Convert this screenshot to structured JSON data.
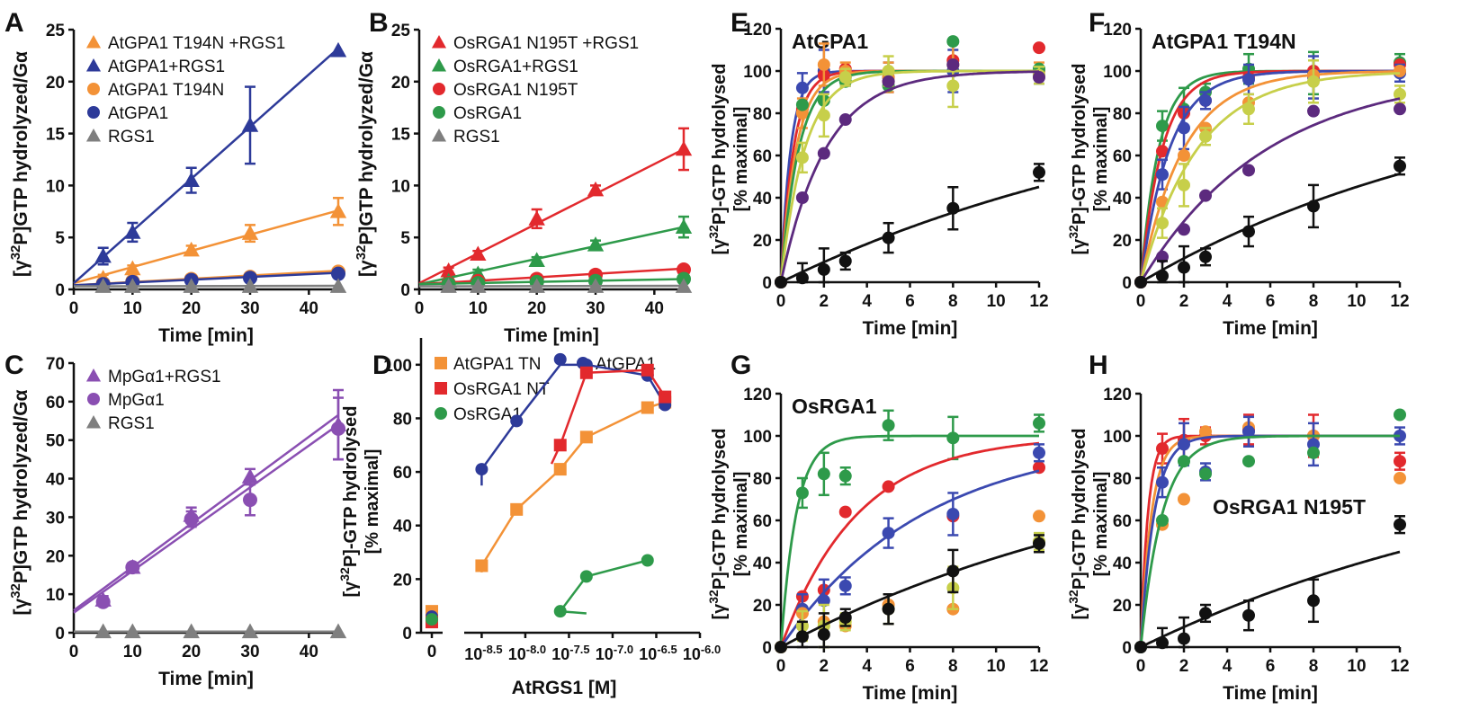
{
  "colors": {
    "black": "#111111",
    "gray": "#7f7f7f",
    "navy": "#2d3a99",
    "blue": "#3b49b0",
    "orange": "#f39237",
    "red": "#e2292d",
    "green": "#2e9a4a",
    "yellow": "#c7cf4a",
    "purple": "#5c2a7e",
    "violet": "#8a4fb2"
  },
  "chart_data": [
    {
      "panel": "A",
      "type": "line",
      "xlabel": "Time [min]",
      "ylabel": "[γ32P]GTP hydrolyzed/Gα",
      "xlim": [
        0,
        45
      ],
      "ylim": [
        0,
        25
      ],
      "xticks": [
        0,
        10,
        20,
        30,
        40
      ],
      "yticks": [
        0,
        5,
        10,
        15,
        20,
        25
      ],
      "legend_position": "top-left",
      "series": [
        {
          "name": "AtGPA1 T194N +RGS1",
          "color": "orange",
          "marker": "triangle",
          "x": [
            5,
            10,
            20,
            30,
            45
          ],
          "y": [
            1.1,
            2.0,
            3.8,
            5.4,
            7.5
          ],
          "err": [
            0.3,
            0.3,
            0.4,
            0.8,
            1.3
          ],
          "fit_line": [
            0.6,
            7.6
          ]
        },
        {
          "name": "AtGPA1+RGS1",
          "color": "navy",
          "marker": "triangle",
          "x": [
            5,
            10,
            20,
            30,
            45
          ],
          "y": [
            3.2,
            5.5,
            10.5,
            15.8,
            23.0
          ],
          "err": [
            0.8,
            0.9,
            1.2,
            3.7,
            0
          ],
          "fit_line": [
            0.6,
            23.2
          ]
        },
        {
          "name": "AtGPA1 T194N",
          "color": "orange",
          "marker": "circle",
          "x": [
            5,
            10,
            20,
            30,
            45
          ],
          "y": [
            0.6,
            0.8,
            1.0,
            1.2,
            1.7
          ],
          "err": [
            0,
            0,
            0,
            0,
            0.3
          ],
          "fit_line": [
            0.4,
            1.8
          ]
        },
        {
          "name": "AtGPA1",
          "color": "navy",
          "marker": "circle",
          "x": [
            5,
            10,
            20,
            30,
            45
          ],
          "y": [
            0.5,
            0.7,
            0.9,
            1.1,
            1.5
          ],
          "err": [
            0,
            0,
            0,
            0,
            0.2
          ],
          "fit_line": [
            0.4,
            1.6
          ]
        },
        {
          "name": "RGS1",
          "color": "gray",
          "marker": "triangle",
          "x": [
            5,
            10,
            20,
            30,
            45
          ],
          "y": [
            0.3,
            0.3,
            0.3,
            0.3,
            0.3
          ],
          "err": [
            0,
            0,
            0,
            0,
            0
          ],
          "fit_line": [
            0.3,
            0.35
          ]
        }
      ]
    },
    {
      "panel": "B",
      "type": "line",
      "xlabel": "Time [min]",
      "ylabel": "[γ32P]GTP hydrolyzed/Gα",
      "xlim": [
        0,
        45
      ],
      "ylim": [
        0,
        25
      ],
      "xticks": [
        0,
        10,
        20,
        30,
        40
      ],
      "yticks": [
        0,
        5,
        10,
        15,
        20,
        25
      ],
      "legend_position": "top-left",
      "series": [
        {
          "name": "OsRGA1 N195T +RGS1",
          "color": "red",
          "marker": "triangle",
          "x": [
            5,
            10,
            20,
            30,
            45
          ],
          "y": [
            1.8,
            3.4,
            6.8,
            9.6,
            13.5
          ],
          "err": [
            0.3,
            0.3,
            0.9,
            0.4,
            2.0
          ],
          "fit_line": [
            0.6,
            13.5
          ]
        },
        {
          "name": "OsRGA1+RGS1",
          "color": "green",
          "marker": "triangle",
          "x": [
            5,
            10,
            20,
            30,
            45
          ],
          "y": [
            0.8,
            1.5,
            2.8,
            4.3,
            6.0
          ],
          "err": [
            0.3,
            0.4,
            0.3,
            0.4,
            1.0
          ],
          "fit_line": [
            0.5,
            6.0
          ]
        },
        {
          "name": "OsRGA1 N195T",
          "color": "red",
          "marker": "circle",
          "x": [
            5,
            10,
            20,
            30,
            45
          ],
          "y": [
            0.6,
            0.8,
            1.0,
            1.4,
            1.9
          ],
          "err": [
            0,
            0,
            0,
            0,
            0.2
          ],
          "fit_line": [
            0.5,
            2.0
          ]
        },
        {
          "name": "OsRGA1",
          "color": "green",
          "marker": "circle",
          "x": [
            5,
            10,
            20,
            30,
            45
          ],
          "y": [
            0.5,
            0.6,
            0.7,
            0.8,
            1.0
          ],
          "err": [
            0,
            0,
            0,
            0,
            0
          ],
          "fit_line": [
            0.5,
            1.0
          ]
        },
        {
          "name": "RGS1",
          "color": "gray",
          "marker": "triangle",
          "x": [
            5,
            10,
            20,
            30,
            45
          ],
          "y": [
            0.3,
            0.3,
            0.3,
            0.3,
            0.3
          ],
          "err": [
            0,
            0,
            0,
            0,
            0
          ],
          "fit_line": [
            0.3,
            0.35
          ]
        }
      ]
    },
    {
      "panel": "C",
      "type": "line",
      "xlabel": "Time [min]",
      "ylabel": "[γ32P]GTP hydrolyzed/Gα",
      "xlim": [
        0,
        45
      ],
      "ylim": [
        0,
        70
      ],
      "xticks": [
        0,
        10,
        20,
        30,
        40
      ],
      "yticks": [
        0,
        10,
        20,
        30,
        40,
        50,
        60,
        70
      ],
      "legend_position": "top-left",
      "series": [
        {
          "name": "MpGα1+RGS1",
          "color": "violet",
          "marker": "triangle",
          "x": [
            5,
            10,
            20,
            30,
            45
          ],
          "y": [
            8.5,
            17,
            30.5,
            40.5,
            54
          ],
          "err": [
            1,
            1,
            2,
            2,
            9
          ],
          "fit_line": [
            5.8,
            56.5
          ]
        },
        {
          "name": "MpGα1",
          "color": "violet",
          "marker": "circle",
          "x": [
            5,
            10,
            20,
            30,
            45
          ],
          "y": [
            8,
            17,
            29.5,
            34.5,
            53
          ],
          "err": [
            1,
            1,
            2,
            4,
            8
          ],
          "fit_line": [
            5.2,
            54
          ]
        },
        {
          "name": "RGS1",
          "color": "gray",
          "marker": "triangle",
          "x": [
            5,
            10,
            20,
            30,
            45
          ],
          "y": [
            0.3,
            0.3,
            0.3,
            0.3,
            0.3
          ],
          "err": [
            0,
            0,
            0,
            0,
            0
          ],
          "fit_line": [
            0.3,
            0.3
          ]
        }
      ]
    },
    {
      "panel": "D",
      "type": "scatter",
      "xlabel": "AtRGS1 [M]",
      "ylabel": "[γ32P]-GTP hydrolysed [% maximal]",
      "xlim": [
        -8.7,
        -6.0
      ],
      "ylim": [
        0,
        110
      ],
      "x_scale": "log",
      "xticks": [
        -8.5,
        -8.0,
        -7.5,
        -7.0,
        -6.5,
        -6.0
      ],
      "xtick_labels": [
        "10-8.5",
        "10-8.0",
        "10-7.5",
        "10-7.0",
        "10-6.5",
        "10-6.0"
      ],
      "yticks": [
        0,
        20,
        40,
        60,
        80,
        100
      ],
      "legend_position": "top",
      "series": [
        {
          "name": "AtGPA1 TN",
          "color": "orange",
          "marker": "square",
          "zero_value": 8,
          "x": [
            -8.5,
            -8.1,
            -7.6,
            -7.3,
            -6.6,
            -6.4
          ],
          "y": [
            25,
            46,
            61,
            73,
            84,
            86
          ],
          "fit_x0": -8.5
        },
        {
          "name": "AtGPA1",
          "color": "navy",
          "marker": "circle",
          "zero_value": 6,
          "x": [
            -8.5,
            -8.1,
            -7.6,
            -7.3,
            -6.6,
            -6.4
          ],
          "y": [
            61,
            79,
            102,
            100,
            96,
            85
          ],
          "fit_x0": -8.5
        },
        {
          "name": "OsRGA1 NT",
          "color": "red",
          "marker": "square",
          "zero_value": 4,
          "x": [
            -7.6,
            -7.3,
            -6.6,
            -6.4
          ],
          "y": [
            70,
            97,
            98,
            88
          ],
          "fit_x0": -7.7
        },
        {
          "name": "OsRGA1",
          "color": "green",
          "marker": "circle",
          "zero_value": 5,
          "x": [
            -7.6,
            -7.3,
            -6.6
          ],
          "y": [
            8,
            21,
            27
          ],
          "fit_x0": -7.3
        }
      ]
    },
    {
      "panel": "E",
      "type": "line",
      "title": "AtGPA1",
      "xlabel": "Time [min]",
      "ylabel": "[γ32P]-GTP hydrolysed [% maximal]",
      "xlim": [
        0,
        12
      ],
      "ylim": [
        0,
        120
      ],
      "xticks": [
        0,
        2,
        4,
        6,
        8,
        10,
        12
      ],
      "yticks": [
        0,
        20,
        40,
        60,
        80,
        100,
        120
      ],
      "x": [
        0,
        1,
        2,
        3,
        5,
        8,
        12
      ],
      "series": [
        {
          "color": "blue",
          "k": 2.2,
          "y": [
            0,
            92,
            100,
            97,
            97,
            100,
            98
          ]
        },
        {
          "color": "red",
          "k": 1.7,
          "y": [
            0,
            82,
            98,
            101,
            95,
            105,
            111
          ]
        },
        {
          "color": "orange",
          "k": 1.4,
          "y": [
            0,
            80,
            103,
            100,
            97,
            103,
            100
          ]
        },
        {
          "color": "green",
          "k": 1.2,
          "y": [
            0,
            84,
            86,
            95,
            93,
            114,
            101
          ]
        },
        {
          "color": "yellow",
          "k": 0.9,
          "y": [
            0,
            59,
            79,
            97,
            100,
            93,
            98
          ]
        },
        {
          "color": "purple",
          "k": 0.48,
          "y": [
            0,
            40,
            61,
            77,
            95,
            103,
            97
          ]
        },
        {
          "color": "black",
          "k": 0.05,
          "y": [
            0,
            2,
            6,
            10,
            21,
            35,
            52
          ]
        }
      ]
    },
    {
      "panel": "F",
      "type": "line",
      "title": "AtGPA1 T194N",
      "xlabel": "Time [min]",
      "ylabel": "[γ32P]-GTP hydrolysed [% maximal]",
      "xlim": [
        0,
        12
      ],
      "ylim": [
        0,
        120
      ],
      "xticks": [
        0,
        2,
        4,
        6,
        8,
        10,
        12
      ],
      "yticks": [
        0,
        20,
        40,
        60,
        80,
        100,
        120
      ],
      "x": [
        0,
        1,
        2,
        3,
        5,
        8,
        12
      ],
      "series": [
        {
          "color": "green",
          "k": 1.2,
          "y": [
            0,
            74,
            82,
            90,
            101,
            99,
            104
          ]
        },
        {
          "color": "red",
          "k": 1.0,
          "y": [
            0,
            62,
            80,
            86,
            97,
            100,
            103
          ]
        },
        {
          "color": "blue",
          "k": 0.75,
          "y": [
            0,
            51,
            73,
            86,
            96,
            97,
            99
          ]
        },
        {
          "color": "orange",
          "k": 0.5,
          "y": [
            0,
            38,
            60,
            73,
            85,
            98,
            100
          ]
        },
        {
          "color": "yellow",
          "k": 0.38,
          "y": [
            0,
            28,
            46,
            69,
            82,
            95,
            89
          ]
        },
        {
          "color": "purple",
          "k": 0.17,
          "y": [
            0,
            12,
            25,
            41,
            53,
            81,
            82
          ]
        },
        {
          "color": "black",
          "k": 0.06,
          "y": [
            0,
            3,
            7,
            12,
            24,
            36,
            55
          ]
        }
      ]
    },
    {
      "panel": "G",
      "type": "line",
      "title": "OsRGA1",
      "xlabel": "Time [min]",
      "ylabel": "[γ32P]-GTP hydrolysed [% maximal]",
      "xlim": [
        0,
        12
      ],
      "ylim": [
        0,
        120
      ],
      "xticks": [
        0,
        2,
        4,
        6,
        8,
        10,
        12
      ],
      "yticks": [
        0,
        20,
        40,
        60,
        80,
        100,
        120
      ],
      "x": [
        0,
        1,
        2,
        3,
        5,
        8,
        12
      ],
      "series": [
        {
          "color": "green",
          "k": 1.4,
          "y": [
            0,
            73,
            82,
            81,
            105,
            99,
            106
          ]
        },
        {
          "color": "red",
          "k": 0.28,
          "y": [
            0,
            24,
            27,
            64,
            76,
            62,
            85
          ]
        },
        {
          "color": "blue",
          "k": 0.15,
          "y": [
            0,
            18,
            22,
            29,
            54,
            63,
            92
          ]
        },
        {
          "color": "orange",
          "k": 0.0,
          "y": [
            0,
            16,
            12,
            10,
            20,
            18,
            62
          ]
        },
        {
          "color": "yellow",
          "k": 0.0,
          "y": [
            0,
            10,
            10,
            12,
            18,
            28,
            50
          ]
        },
        {
          "color": "black",
          "k": 0.055,
          "y": [
            0,
            5,
            6,
            14,
            18,
            36,
            49
          ]
        }
      ]
    },
    {
      "panel": "H",
      "type": "line",
      "title": "OsRGA1 N195T",
      "xlabel": "Time [min]",
      "ylabel": "[γ32P]-GTP hydrolysed [% maximal]",
      "xlim": [
        0,
        12
      ],
      "ylim": [
        0,
        120
      ],
      "xticks": [
        0,
        2,
        4,
        6,
        8,
        10,
        12
      ],
      "yticks": [
        0,
        20,
        40,
        60,
        80,
        100,
        120
      ],
      "x": [
        0,
        1,
        2,
        3,
        5,
        8,
        12
      ],
      "series": [
        {
          "color": "red",
          "k": 3.0,
          "y": [
            0,
            94,
            98,
            100,
            103,
            100,
            88
          ]
        },
        {
          "color": "orange",
          "k": 2.0,
          "y": [
            0,
            58,
            70,
            102,
            104,
            100,
            80
          ]
        },
        {
          "color": "blue",
          "k": 1.6,
          "y": [
            0,
            78,
            96,
            83,
            102,
            96,
            100
          ]
        },
        {
          "color": "green",
          "k": 1.0,
          "y": [
            0,
            60,
            88,
            82,
            88,
            92,
            110
          ]
        },
        {
          "color": "black",
          "k": 0.05,
          "y": [
            0,
            2,
            4,
            16,
            15,
            22,
            58
          ]
        }
      ]
    }
  ],
  "panel_letters": [
    "A",
    "B",
    "C",
    "D",
    "E",
    "F",
    "G",
    "H"
  ]
}
